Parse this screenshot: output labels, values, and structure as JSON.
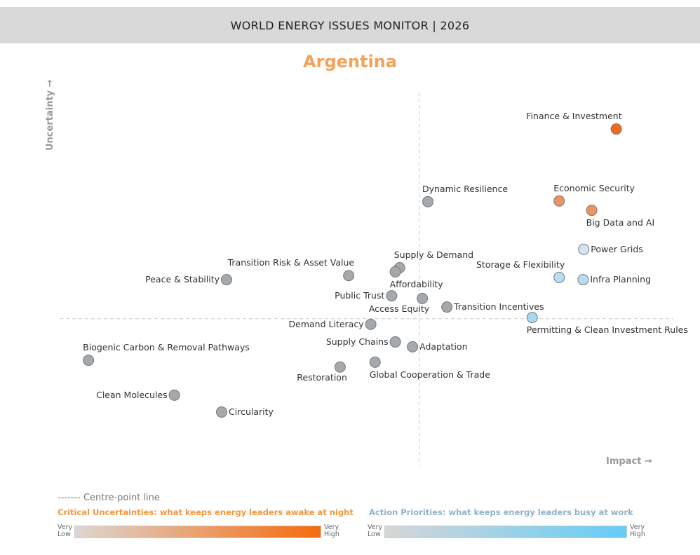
{
  "header": {
    "title": "WORLD ENERGY ISSUES MONITOR | 2026"
  },
  "country": "Argentina",
  "legend": {
    "centre_line": "------- Centre-point line",
    "uncertainty_title": "Critical Uncertainties: what keeps energy leaders awake at night",
    "priority_title": "Action Priorities: what keeps energy leaders busy at work",
    "very_low": [
      "Very",
      "Low"
    ],
    "very_high": [
      "Very",
      "High"
    ],
    "uncertainty_colors": [
      "#ddd6d2",
      "#f56b0c"
    ],
    "priority_colors": [
      "#d6d6d6",
      "#66ccf8"
    ]
  },
  "chart_data": {
    "type": "scatter",
    "xlabel": "Impact →",
    "ylabel": "Uncertainty →",
    "xlim": [
      0,
      10
    ],
    "ylim": [
      0,
      10
    ],
    "centre": {
      "x": 5.86,
      "y": 3.93
    },
    "grid": false,
    "points": [
      {
        "name": "Finance & Investment",
        "x": 9.07,
        "y": 8.99,
        "color": "#f26a1b",
        "label": "above-left"
      },
      {
        "name": "Economic Security",
        "x": 8.14,
        "y": 7.07,
        "color": "#e9955f",
        "label": "above-right"
      },
      {
        "name": "Big Data and AI",
        "x": 8.67,
        "y": 6.82,
        "color": "#e9955f",
        "label": "below-right"
      },
      {
        "name": "Power Grids",
        "x": 8.54,
        "y": 5.78,
        "color": "#d3e4ee",
        "label": "right"
      },
      {
        "name": "Storage & Flexibility",
        "x": 8.14,
        "y": 5.03,
        "color": "#b7ddf1",
        "label": "above-left"
      },
      {
        "name": "Infra Planning",
        "x": 8.53,
        "y": 4.97,
        "color": "#b7ddf1",
        "label": "right"
      },
      {
        "name": "Permitting & Clean Investment Rules",
        "x": 7.7,
        "y": 3.96,
        "color": "#a8d8f3",
        "label": "below-right"
      },
      {
        "name": "Dynamic Resilience",
        "x": 6.0,
        "y": 7.05,
        "color": "#a4a9ad",
        "label": "above-right"
      },
      {
        "name": "Supply & Demand",
        "x": 5.54,
        "y": 5.29,
        "color": "#a4a9ad",
        "label": "above-right"
      },
      {
        "name": "Affordability",
        "x": 5.47,
        "y": 5.18,
        "color": "#a4a9ad",
        "label": "below-right"
      },
      {
        "name": "Transition Risk & Asset Value",
        "x": 4.71,
        "y": 5.08,
        "color": "#a4a9ad",
        "label": "above-left"
      },
      {
        "name": "Peace & Stability",
        "x": 2.72,
        "y": 4.97,
        "color": "#a4a9ad",
        "label": "left"
      },
      {
        "name": "Public Trust",
        "x": 5.41,
        "y": 4.54,
        "color": "#a4a9ad",
        "label": "left"
      },
      {
        "name": "Access Equity",
        "x": 5.91,
        "y": 4.47,
        "color": "#a4a9ad",
        "label": "below-left"
      },
      {
        "name": "Transition Incentives",
        "x": 6.31,
        "y": 4.24,
        "color": "#a4a9ad",
        "label": "right"
      },
      {
        "name": "Demand Literacy",
        "x": 5.07,
        "y": 3.78,
        "color": "#a4a9ad",
        "label": "left"
      },
      {
        "name": "Supply Chains",
        "x": 5.47,
        "y": 3.31,
        "color": "#a4a9ad",
        "label": "left"
      },
      {
        "name": "Adaptation",
        "x": 5.75,
        "y": 3.18,
        "color": "#a4a9ad",
        "label": "right"
      },
      {
        "name": "Global Cooperation & Trade",
        "x": 5.14,
        "y": 2.77,
        "color": "#a4a9ad",
        "label": "below-right"
      },
      {
        "name": "Restoration",
        "x": 4.57,
        "y": 2.64,
        "color": "#a4a9ad",
        "label": "below-left"
      },
      {
        "name": "Biogenic Carbon & Removal Pathways",
        "x": 0.47,
        "y": 2.82,
        "color": "#a4a9ad",
        "label": "above-right"
      },
      {
        "name": "Clean Molecules",
        "x": 1.87,
        "y": 1.89,
        "color": "#a4a9ad",
        "label": "left"
      },
      {
        "name": "Circularity",
        "x": 2.64,
        "y": 1.44,
        "color": "#a4a9ad",
        "label": "right"
      }
    ]
  }
}
